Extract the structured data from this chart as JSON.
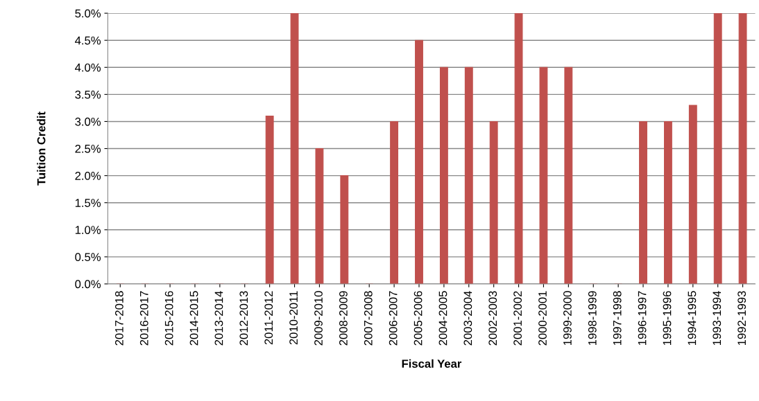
{
  "chart_data": {
    "type": "bar",
    "xlabel": "Fiscal Year",
    "ylabel": "Tuition Credit",
    "categories": [
      "2017-2018",
      "2016-2017",
      "2015-2016",
      "2014-2015",
      "2013-2014",
      "2012-2013",
      "2011-2012",
      "2010-2011",
      "2009-2010",
      "2008-2009",
      "2007-2008",
      "2006-2007",
      "2005-2006",
      "2004-2005",
      "2003-2004",
      "2002-2003",
      "2001-2002",
      "2000-2001",
      "1999-2000",
      "1998-1999",
      "1997-1998",
      "1996-1997",
      "1995-1996",
      "1994-1995",
      "1993-1994",
      "1992-1993"
    ],
    "values": [
      0,
      0,
      0,
      0,
      0,
      0,
      3.1,
      5,
      2.5,
      2,
      0,
      3,
      4.5,
      4,
      4,
      3,
      5,
      4,
      4,
      0,
      0,
      3,
      3,
      3.3,
      5,
      5
    ],
    "color": "#c0504d",
    "ylim": [
      0,
      5
    ],
    "yticks": [
      {
        "value": 0,
        "label": "0.0%"
      },
      {
        "value": 0.5,
        "label": "0.5%"
      },
      {
        "value": 1,
        "label": "1.0%"
      },
      {
        "value": 1.5,
        "label": "1.5%"
      },
      {
        "value": 2,
        "label": "2.0%"
      },
      {
        "value": 2.5,
        "label": "2.5%"
      },
      {
        "value": 3,
        "label": "3.0%"
      },
      {
        "value": 3.5,
        "label": "3.5%"
      },
      {
        "value": 4,
        "label": "4.0%"
      },
      {
        "value": 4.5,
        "label": "4.5%"
      },
      {
        "value": 5,
        "label": "5.0%"
      }
    ],
    "grid": "y"
  }
}
